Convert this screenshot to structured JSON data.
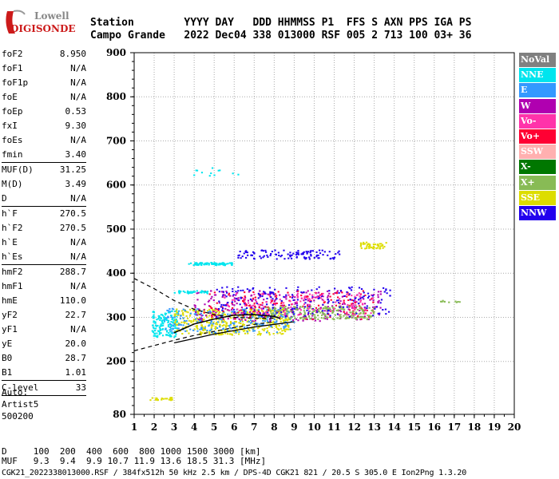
{
  "logo": {
    "line1": "Lowell",
    "line2": "DIGISONDE"
  },
  "header": {
    "line1": "Station        YYYY DAY   DDD HHMMSS P1  FFS S AXN PPS IGA PS",
    "line2": "Campo Grande   2022 Dec04 338 013000 RSF 005 2 713 100 03+ 36"
  },
  "params": [
    {
      "label": "foF2",
      "value": "8.950"
    },
    {
      "label": "foF1",
      "value": "N/A"
    },
    {
      "label": "foF1p",
      "value": "N/A"
    },
    {
      "label": "foE",
      "value": "N/A"
    },
    {
      "label": "foEp",
      "value": "0.53"
    },
    {
      "label": "fxI",
      "value": "9.30"
    },
    {
      "label": "foEs",
      "value": "N/A"
    },
    {
      "label": "fmin",
      "value": "3.40",
      "divider": true
    },
    {
      "label": "MUF(D)",
      "value": "31.25"
    },
    {
      "label": "M(D)",
      "value": "3.49"
    },
    {
      "label": "D",
      "value": "N/A",
      "divider": true
    },
    {
      "label": "h`F",
      "value": "270.5"
    },
    {
      "label": "h`F2",
      "value": "270.5"
    },
    {
      "label": "h`E",
      "value": "N/A"
    },
    {
      "label": "h`Es",
      "value": "N/A",
      "divider": true
    },
    {
      "label": "hmF2",
      "value": "288.7"
    },
    {
      "label": "hmF1",
      "value": "N/A"
    },
    {
      "label": "hmE",
      "value": "110.0"
    },
    {
      "label": "yF2",
      "value": "22.7"
    },
    {
      "label": "yF1",
      "value": "N/A"
    },
    {
      "label": "yE",
      "value": "20.0"
    },
    {
      "label": "B0",
      "value": "28.7"
    },
    {
      "label": "B1",
      "value": "1.01",
      "divider": true
    },
    {
      "label": "C-level",
      "value": "33",
      "divider": true
    }
  ],
  "auto": {
    "line1": "Auto:",
    "line2": "Artist5",
    "line3": "500200"
  },
  "footer": {
    "line1": "D     100  200  400  600  800 1000 1500 3000 [km]",
    "line2": "MUF   9.3  9.4  9.9 10.7 11.9 13.6 18.5 31.3 [MHz]",
    "line3": "CGK21_2022338013000.RSF / 384fx512h 50 kHz 2.5 km / DPS-4D CGK21 821 / 20.5 S 305.0 E Ion2Png 1.3.20"
  },
  "legend": [
    {
      "name": "NoVal",
      "color": "#808080"
    },
    {
      "name": "NNE",
      "color": "#00e5ee"
    },
    {
      "name": "E",
      "color": "#3399ff"
    },
    {
      "name": "W",
      "color": "#b000b0"
    },
    {
      "name": "Vo-",
      "color": "#ff33aa"
    },
    {
      "name": "Vo+",
      "color": "#ff0033"
    },
    {
      "name": "SSW",
      "color": "#ffb0b0"
    },
    {
      "name": "X-",
      "color": "#007700"
    },
    {
      "name": "X+",
      "color": "#88bb55"
    },
    {
      "name": "SSE",
      "color": "#dddd00"
    },
    {
      "name": "NNW",
      "color": "#2200ee"
    }
  ],
  "chart_data": {
    "type": "scatter",
    "xlim": [
      1,
      20
    ],
    "ylim": [
      80,
      900
    ],
    "xticks": [
      1,
      2,
      3,
      4,
      5,
      6,
      7,
      8,
      9,
      10,
      11,
      12,
      13,
      14,
      15,
      16,
      17,
      18,
      19,
      20
    ],
    "yticks": [
      80,
      200,
      300,
      400,
      500,
      600,
      700,
      800,
      900
    ],
    "grid": true,
    "clusters": [
      {
        "series": "SSE",
        "x_range": [
          1.8,
          2.9
        ],
        "y_range": [
          112,
          118
        ],
        "n": 25
      },
      {
        "series": "NNE",
        "x_range": [
          1.9,
          3.2
        ],
        "y_range": [
          255,
          315
        ],
        "n": 160
      },
      {
        "series": "SSE",
        "x_range": [
          3.0,
          8.8
        ],
        "y_range": [
          260,
          320
        ],
        "n": 420
      },
      {
        "series": "E",
        "x_range": [
          2.5,
          9.0
        ],
        "y_range": [
          265,
          320
        ],
        "n": 200
      },
      {
        "series": "W",
        "x_range": [
          4.0,
          13.5
        ],
        "y_range": [
          290,
          360
        ],
        "n": 260
      },
      {
        "series": "Vo+",
        "x_range": [
          4.5,
          13.0
        ],
        "y_range": [
          295,
          360
        ],
        "n": 160
      },
      {
        "series": "X+",
        "x_range": [
          7.5,
          13.0
        ],
        "y_range": [
          295,
          325
        ],
        "n": 200
      },
      {
        "series": "NNW",
        "x_range": [
          5.0,
          13.8
        ],
        "y_range": [
          300,
          370
        ],
        "n": 200
      },
      {
        "series": "Vo-",
        "x_range": [
          5.5,
          13.0
        ],
        "y_range": [
          305,
          355
        ],
        "n": 120
      },
      {
        "series": "NNE",
        "x_range": [
          3.7,
          5.9
        ],
        "y_range": [
          418,
          424
        ],
        "n": 80
      },
      {
        "series": "NNW",
        "x_range": [
          6.2,
          11.3
        ],
        "y_range": [
          432,
          452
        ],
        "n": 110
      },
      {
        "series": "SSE",
        "x_range": [
          12.3,
          13.6
        ],
        "y_range": [
          455,
          470
        ],
        "n": 45
      },
      {
        "series": "NNE",
        "x_range": [
          3.0,
          4.8
        ],
        "y_range": [
          354,
          360
        ],
        "n": 40
      },
      {
        "series": "X+",
        "x_range": [
          16.3,
          17.3
        ],
        "y_range": [
          333,
          338
        ],
        "n": 10
      },
      {
        "series": "NNE",
        "x_range": [
          3.8,
          6.5
        ],
        "y_range": [
          620,
          640
        ],
        "n": 12
      }
    ],
    "trace_solid": [
      [
        3.0,
        265
      ],
      [
        4.0,
        285
      ],
      [
        5.0,
        296
      ],
      [
        6.0,
        305
      ],
      [
        7.0,
        306
      ],
      [
        8.0,
        302
      ],
      [
        8.3,
        297
      ]
    ],
    "trace_lower": [
      [
        3.0,
        242
      ],
      [
        4.0,
        252
      ],
      [
        5.0,
        262
      ],
      [
        6.0,
        270
      ],
      [
        7.0,
        278
      ],
      [
        8.0,
        284
      ],
      [
        9.0,
        290
      ]
    ],
    "trace_dashed_upper": [
      [
        1.0,
        388
      ],
      [
        2.0,
        365
      ],
      [
        3.0,
        338
      ],
      [
        4.0,
        318
      ],
      [
        5.0,
        306
      ],
      [
        6.0,
        300
      ],
      [
        7.0,
        298
      ],
      [
        8.0,
        298
      ]
    ],
    "trace_dashed_lower": [
      [
        1.0,
        224
      ],
      [
        2.0,
        236
      ],
      [
        3.0,
        248
      ],
      [
        4.0,
        259
      ],
      [
        5.0,
        268
      ],
      [
        6.0,
        277
      ],
      [
        7.0,
        284
      ],
      [
        8.0,
        290
      ]
    ]
  }
}
